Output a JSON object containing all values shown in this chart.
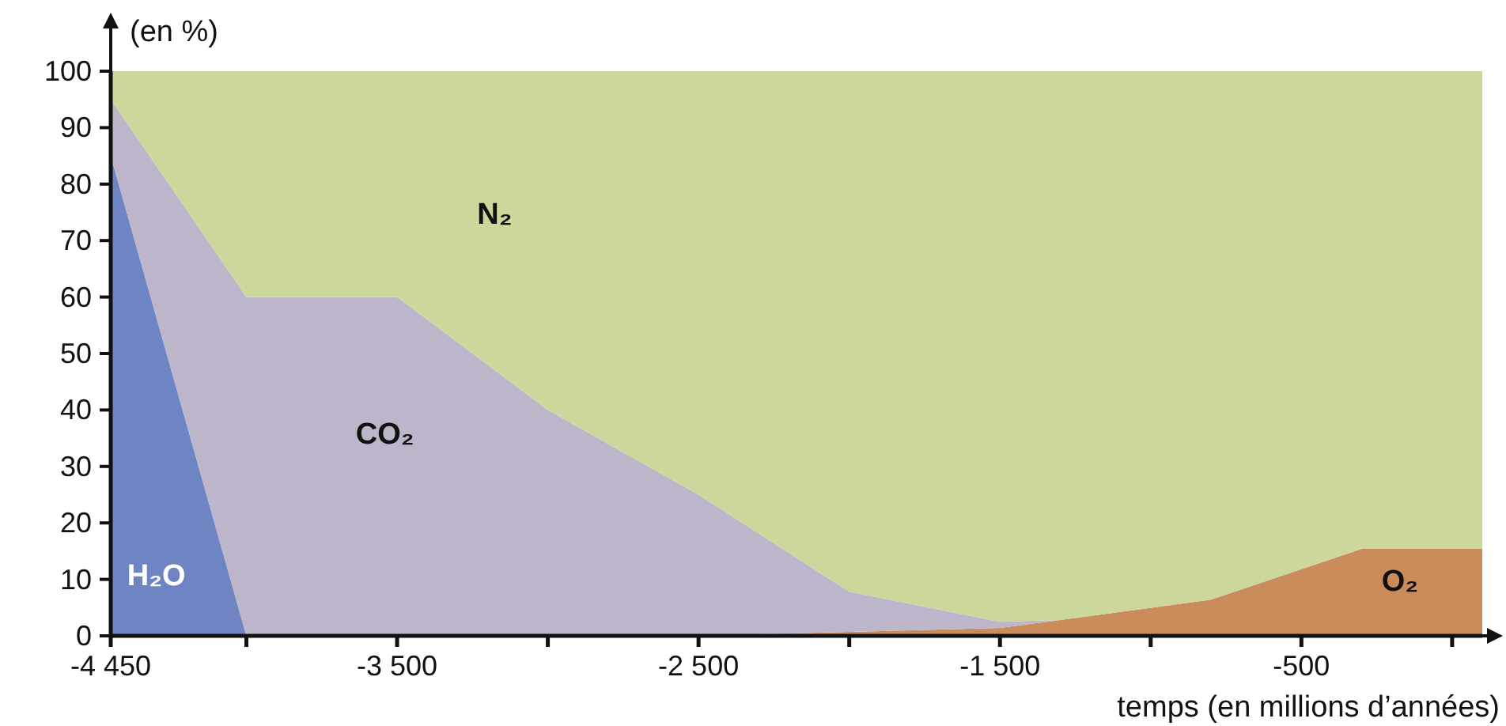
{
  "chart_data": {
    "type": "area",
    "stacked": true,
    "xlabel": "temps (en millions d’années)",
    "ylabel": "(en %)",
    "x": [
      -4450,
      -4000,
      -3500,
      -3000,
      -2500,
      -2000,
      -1500,
      -1300,
      -800,
      -300,
      100
    ],
    "xlim": [
      -4450,
      100
    ],
    "xticks": [
      {
        "value": -4450,
        "label": "-4 450"
      },
      {
        "value": -4000,
        "label": null
      },
      {
        "value": -3500,
        "label": "-3 500"
      },
      {
        "value": -3000,
        "label": null
      },
      {
        "value": -2500,
        "label": "-2 500"
      },
      {
        "value": -2000,
        "label": null
      },
      {
        "value": -1500,
        "label": "-1 500"
      },
      {
        "value": -1000,
        "label": null
      },
      {
        "value": -500,
        "label": "-500"
      },
      {
        "value": 0,
        "label": null
      }
    ],
    "ylim": [
      0,
      100
    ],
    "yticks": [
      0,
      10,
      20,
      30,
      40,
      50,
      60,
      70,
      80,
      90,
      100
    ],
    "series": [
      {
        "name": "H₂O",
        "color": "#6f84c2",
        "values": [
          85,
          0,
          null,
          null,
          null,
          null,
          null,
          null,
          null,
          null,
          null
        ]
      },
      {
        "name": "O₂",
        "color": "#cb8c5c",
        "values": [
          null,
          null,
          null,
          null,
          0,
          0.7,
          1.4,
          2.8,
          6.4,
          15.4,
          15.4
        ]
      },
      {
        "name": "CO₂",
        "color": "#bdb6ca",
        "values": [
          10,
          60,
          60,
          40,
          25,
          7.1,
          1.1,
          0,
          null,
          null,
          null
        ]
      },
      {
        "name": "N₂",
        "color": "#ccd79b",
        "values": [
          5,
          40,
          40,
          60,
          75,
          92.2,
          97.5,
          97.2,
          93.6,
          84.6,
          84.6
        ]
      }
    ]
  }
}
